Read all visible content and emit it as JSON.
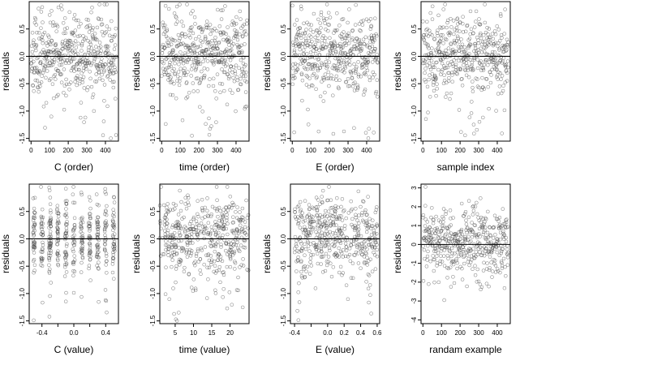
{
  "chart_data": [
    {
      "type": "scatter",
      "x_kind": "order",
      "n": 460,
      "seed": 11,
      "ylabel": "residuals",
      "xlabel": "C (order)",
      "xlim": [
        -10,
        470
      ],
      "ylim": [
        -1.55,
        1.0
      ],
      "xticks": [
        0,
        100,
        200,
        300,
        400
      ],
      "yticks": [
        0.5,
        0.0,
        -0.5,
        -1.0,
        -1.5
      ],
      "ytick_labels": [
        "0.5",
        "0.0",
        "-0.5",
        "-1.0",
        "-1.5"
      ],
      "hline": 0.0,
      "grid": false,
      "legend": "none"
    },
    {
      "type": "scatter",
      "x_kind": "order",
      "n": 460,
      "seed": 23,
      "ylabel": "residuals",
      "xlabel": "time (order)",
      "xlim": [
        -10,
        470
      ],
      "ylim": [
        -1.55,
        1.0
      ],
      "xticks": [
        0,
        100,
        200,
        300,
        400
      ],
      "yticks": [
        0.5,
        0.0,
        -0.5,
        -1.0,
        -1.5
      ],
      "ytick_labels": [
        "0.5",
        "0.0",
        "-0.5",
        "-1.0",
        "-1.5"
      ],
      "hline": 0.0,
      "grid": false,
      "legend": "none"
    },
    {
      "type": "scatter",
      "x_kind": "order",
      "n": 460,
      "seed": 37,
      "ylabel": "residuals",
      "xlabel": "E (order)",
      "xlim": [
        -10,
        470
      ],
      "ylim": [
        -1.55,
        1.0
      ],
      "xticks": [
        0,
        100,
        200,
        300,
        400
      ],
      "yticks": [
        0.5,
        0.0,
        -0.5,
        -1.0,
        -1.5
      ],
      "ytick_labels": [
        "0.5",
        "0.0",
        "-0.5",
        "-1.0",
        "-1.5"
      ],
      "hline": 0.0,
      "grid": false,
      "legend": "none"
    },
    {
      "type": "scatter",
      "x_kind": "order",
      "n": 460,
      "seed": 41,
      "ylabel": "residuals",
      "xlabel": "sample index",
      "xlim": [
        -10,
        470
      ],
      "ylim": [
        -1.55,
        1.0
      ],
      "xticks": [
        0,
        100,
        200,
        300,
        400
      ],
      "yticks": [
        0.5,
        0.0,
        -0.5,
        -1.0,
        -1.5
      ],
      "ytick_labels": [
        "0.5",
        "0.0",
        "-0.5",
        "-1.0",
        "-1.5"
      ],
      "hline": 0.0,
      "grid": false,
      "legend": "none"
    },
    {
      "type": "scatter",
      "x_kind": "levels",
      "x_levels": [
        -0.5,
        -0.4,
        -0.3,
        -0.2,
        -0.1,
        0.0,
        0.1,
        0.2,
        0.3,
        0.4,
        0.5
      ],
      "x_jitter": 0.012,
      "n": 460,
      "seed": 53,
      "ylabel": "residuals",
      "xlabel": "C (value)",
      "xlim": [
        -0.56,
        0.56
      ],
      "ylim": [
        -1.55,
        1.0
      ],
      "xticks": [
        -0.4,
        -0.2,
        0.0,
        0.2,
        0.4
      ],
      "xtick_labels": [
        "-0.4",
        "",
        "0.0",
        "",
        "0.4"
      ],
      "yticks": [
        0.5,
        0.0,
        -0.5,
        -1.0,
        -1.5
      ],
      "ytick_labels": [
        "0.5",
        "0.0",
        "-0.5",
        "-1.0",
        "-1.5"
      ],
      "hline": 0.0,
      "grid": false,
      "legend": "none"
    },
    {
      "type": "scatter",
      "x_kind": "levels",
      "x_levels": [
        2,
        3,
        4,
        5,
        6,
        7,
        8,
        9,
        10,
        11,
        12,
        13,
        14,
        15,
        16,
        17,
        18,
        19,
        20,
        21,
        22,
        23,
        24
      ],
      "x_jitter": 0.05,
      "n": 460,
      "seed": 67,
      "ylabel": "residuals",
      "xlabel": "time (value)",
      "xlim": [
        0.8,
        25.2
      ],
      "ylim": [
        -1.55,
        1.0
      ],
      "xticks": [
        5,
        10,
        15,
        20
      ],
      "xtick_labels": [
        "5",
        "10",
        "15",
        "20"
      ],
      "yticks": [
        0.5,
        0.0,
        -0.5,
        -1.0,
        -1.5
      ],
      "ytick_labels": [
        "0.5",
        "0.0",
        "-0.5",
        "-1.0",
        "-1.5"
      ],
      "hline": 0.0,
      "grid": false,
      "legend": "none"
    },
    {
      "type": "scatter",
      "x_kind": "continuous",
      "x_range": [
        -0.4,
        0.6
      ],
      "n": 460,
      "seed": 79,
      "ylabel": "residuals",
      "xlabel": "E (value)",
      "xlim": [
        -0.45,
        0.63
      ],
      "ylim": [
        -1.55,
        1.0
      ],
      "xticks": [
        -0.4,
        -0.2,
        0.0,
        0.2,
        0.4,
        0.6
      ],
      "xtick_labels": [
        "-0.4",
        "",
        "0.0",
        "0.2",
        "0.4",
        "0.6"
      ],
      "yticks": [
        0.5,
        0.0,
        -0.5,
        -1.0,
        -1.5
      ],
      "ytick_labels": [
        "0.5",
        "0.0",
        "-0.5",
        "-1.0",
        "-1.5"
      ],
      "hline": 0.0,
      "grid": false,
      "legend": "none"
    },
    {
      "type": "scatter",
      "x_kind": "order",
      "n": 460,
      "seed": 97,
      "y_scale": 1.0,
      "ylabel": "residuals",
      "xlabel": "randam example",
      "xlim": [
        -10,
        470
      ],
      "ylim": [
        -4.2,
        3.2
      ],
      "xticks": [
        0,
        100,
        200,
        300,
        400
      ],
      "yticks": [
        3,
        2,
        1,
        0,
        -1,
        -2,
        -3,
        -4
      ],
      "ytick_labels": [
        "3",
        "2",
        "1",
        "0",
        "-1",
        "-2",
        "-3",
        "-4"
      ],
      "hline": 0.0,
      "grid": false,
      "legend": "none"
    }
  ],
  "colors": {
    "points": "#444444",
    "axis": "#000000"
  }
}
